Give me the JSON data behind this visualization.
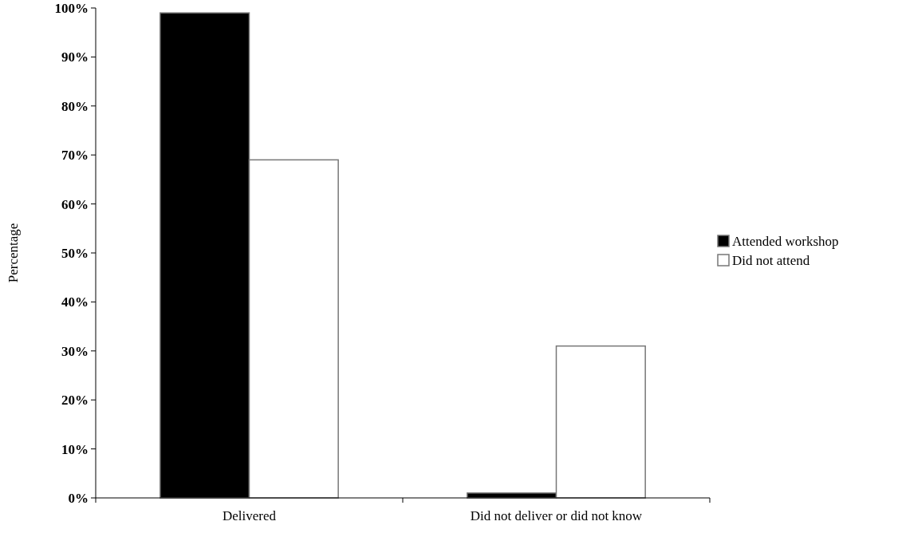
{
  "chart_data": {
    "type": "bar",
    "ylabel": "Percentage",
    "categories": [
      "Delivered",
      "Did not deliver or did not know"
    ],
    "series": [
      {
        "name": "Attended workshop",
        "color": "#000000",
        "values": [
          99,
          1
        ]
      },
      {
        "name": "Did not attend",
        "color": "#ffffff",
        "values": [
          69,
          31
        ]
      }
    ],
    "ylim": [
      0,
      100
    ],
    "yticks": [
      {
        "value": 0,
        "label": "0%"
      },
      {
        "value": 10,
        "label": "10%"
      },
      {
        "value": 20,
        "label": "20%"
      },
      {
        "value": 30,
        "label": "30%"
      },
      {
        "value": 40,
        "label": "40%"
      },
      {
        "value": 50,
        "label": "50%"
      },
      {
        "value": 60,
        "label": "60%"
      },
      {
        "value": 70,
        "label": "70%"
      },
      {
        "value": 80,
        "label": "80%"
      },
      {
        "value": 90,
        "label": "90%"
      },
      {
        "value": 100,
        "label": "100%"
      }
    ],
    "grid": false,
    "legend": "right"
  }
}
